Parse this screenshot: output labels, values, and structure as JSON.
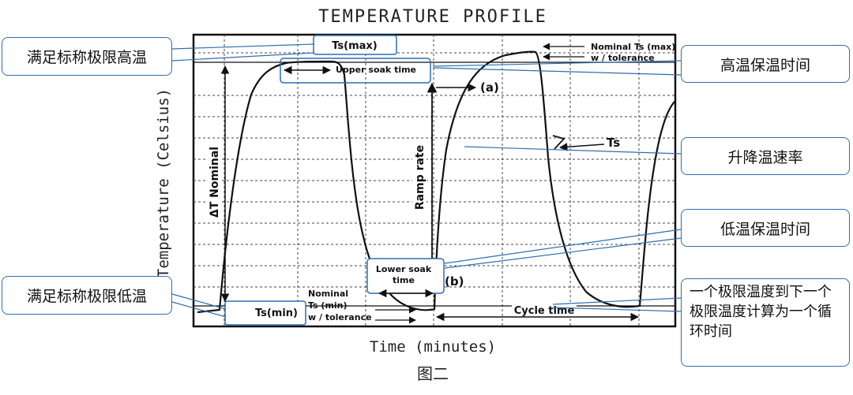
{
  "title": "TEMPERATURE PROFILE",
  "x_axis_label": "Time (minutes)",
  "y_axis_label": "Temperature (Celsius)",
  "caption": "图二",
  "chart_labels": {
    "ts_max": "Ts(max)",
    "ts_min": "Ts(min)",
    "upper_soak": "Upper soak time",
    "lower_soak_line1": "Lower soak",
    "lower_soak_line2": "time",
    "nominal_max_line1": "Nominal Ts (max)",
    "nominal_max_line2": "w / tolerance",
    "nominal_min_line1": "Nominal",
    "nominal_min_line2": "Ts (min)",
    "nominal_min_line3": "w / tolerance",
    "delta_t": "ΔT Nominal",
    "ramp_rate": "Ramp rate",
    "label_a": "(a)",
    "label_b": "(b)",
    "ts": "Ts",
    "cycle_time": "Cycle time"
  },
  "callouts": {
    "high_limit": "满足标称极限高温",
    "low_limit": "满足标称极限低温",
    "high_soak": "高温保温时间",
    "ramp": "升降温速率",
    "low_soak": "低温保温时间",
    "cycle": "一个极限温度到下一个极限温度计算为一个循环时间"
  },
  "colors": {
    "callout_border": "#2f6fb0",
    "chart_ink": "#111111"
  }
}
